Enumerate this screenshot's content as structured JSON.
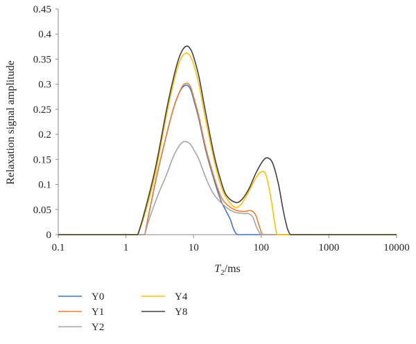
{
  "chart_data": {
    "type": "line",
    "xscale": "log",
    "xlim": [
      0.1,
      10000
    ],
    "ylim": [
      0,
      0.45
    ],
    "x_ticks": [
      "0.1",
      "1",
      "10",
      "100",
      "1000",
      "10000"
    ],
    "y_ticks": [
      "0",
      "0.05",
      "0.1",
      "0.15",
      "0.2",
      "0.25",
      "0.3",
      "0.35",
      "0.4",
      "0.45"
    ],
    "xlabel": {
      "symbol": "T",
      "subscript": "2",
      "unit": "/ms"
    },
    "ylabel": "Relaxation signal amplitude",
    "grid": false,
    "legend_placement": "bottom-left",
    "series": [
      {
        "name": "Y0",
        "color": "#4472c4",
        "points": [
          [
            1.9,
            0
          ],
          [
            2.1,
            0.03
          ],
          [
            2.5,
            0.08
          ],
          [
            3,
            0.13
          ],
          [
            4,
            0.2
          ],
          [
            5,
            0.25
          ],
          [
            6,
            0.28
          ],
          [
            7,
            0.295
          ],
          [
            8,
            0.298
          ],
          [
            9,
            0.29
          ],
          [
            10,
            0.27
          ],
          [
            12,
            0.23
          ],
          [
            15,
            0.17
          ],
          [
            20,
            0.11
          ],
          [
            25,
            0.07
          ],
          [
            30,
            0.048
          ],
          [
            35,
            0.03
          ],
          [
            38,
            0.015
          ],
          [
            42,
            0.003
          ],
          [
            45,
            0
          ]
        ]
      },
      {
        "name": "Y1",
        "color": "#ed7d31",
        "points": [
          [
            1.9,
            0
          ],
          [
            2.1,
            0.03
          ],
          [
            2.5,
            0.08
          ],
          [
            3,
            0.13
          ],
          [
            4,
            0.2
          ],
          [
            5,
            0.25
          ],
          [
            6,
            0.28
          ],
          [
            7,
            0.298
          ],
          [
            8,
            0.302
          ],
          [
            9,
            0.295
          ],
          [
            10,
            0.275
          ],
          [
            12,
            0.235
          ],
          [
            15,
            0.175
          ],
          [
            20,
            0.115
          ],
          [
            25,
            0.078
          ],
          [
            30,
            0.062
          ],
          [
            40,
            0.05
          ],
          [
            55,
            0.046
          ],
          [
            70,
            0.048
          ],
          [
            82,
            0.04
          ],
          [
            92,
            0.02
          ],
          [
            100,
            0.005
          ],
          [
            105,
            0
          ]
        ]
      },
      {
        "name": "Y2",
        "color": "#a5a5a5",
        "points": [
          [
            1.9,
            0
          ],
          [
            2.2,
            0.03
          ],
          [
            3,
            0.08
          ],
          [
            4,
            0.12
          ],
          [
            5,
            0.155
          ],
          [
            6,
            0.175
          ],
          [
            7,
            0.185
          ],
          [
            8,
            0.185
          ],
          [
            9,
            0.18
          ],
          [
            10,
            0.17
          ],
          [
            12,
            0.15
          ],
          [
            15,
            0.115
          ],
          [
            20,
            0.08
          ],
          [
            30,
            0.055
          ],
          [
            40,
            0.045
          ],
          [
            55,
            0.042
          ],
          [
            65,
            0.042
          ],
          [
            75,
            0.035
          ],
          [
            85,
            0.015
          ],
          [
            95,
            0.003
          ],
          [
            100,
            0
          ]
        ]
      },
      {
        "name": "Y4",
        "color": "#ffc000",
        "points": [
          [
            1.5,
            0
          ],
          [
            1.8,
            0.03
          ],
          [
            2.5,
            0.1
          ],
          [
            3,
            0.15
          ],
          [
            4,
            0.24
          ],
          [
            5,
            0.3
          ],
          [
            6,
            0.34
          ],
          [
            7,
            0.358
          ],
          [
            8,
            0.362
          ],
          [
            9,
            0.355
          ],
          [
            10,
            0.34
          ],
          [
            12,
            0.3
          ],
          [
            15,
            0.23
          ],
          [
            20,
            0.15
          ],
          [
            25,
            0.1
          ],
          [
            30,
            0.075
          ],
          [
            40,
            0.055
          ],
          [
            50,
            0.06
          ],
          [
            65,
            0.085
          ],
          [
            85,
            0.115
          ],
          [
            105,
            0.126
          ],
          [
            120,
            0.115
          ],
          [
            140,
            0.07
          ],
          [
            155,
            0.03
          ],
          [
            165,
            0.008
          ],
          [
            170,
            0
          ]
        ]
      },
      {
        "name": "Y8",
        "color": "#404040",
        "points": [
          [
            1.5,
            0
          ],
          [
            1.8,
            0.035
          ],
          [
            2.5,
            0.11
          ],
          [
            3,
            0.16
          ],
          [
            4,
            0.25
          ],
          [
            5,
            0.31
          ],
          [
            6,
            0.35
          ],
          [
            7,
            0.37
          ],
          [
            8,
            0.376
          ],
          [
            9,
            0.37
          ],
          [
            10,
            0.355
          ],
          [
            12,
            0.315
          ],
          [
            15,
            0.245
          ],
          [
            20,
            0.16
          ],
          [
            25,
            0.11
          ],
          [
            30,
            0.08
          ],
          [
            40,
            0.065
          ],
          [
            50,
            0.068
          ],
          [
            65,
            0.09
          ],
          [
            85,
            0.125
          ],
          [
            110,
            0.15
          ],
          [
            130,
            0.152
          ],
          [
            150,
            0.14
          ],
          [
            180,
            0.1
          ],
          [
            210,
            0.05
          ],
          [
            240,
            0.015
          ],
          [
            260,
            0.003
          ],
          [
            270,
            0
          ]
        ]
      }
    ]
  }
}
